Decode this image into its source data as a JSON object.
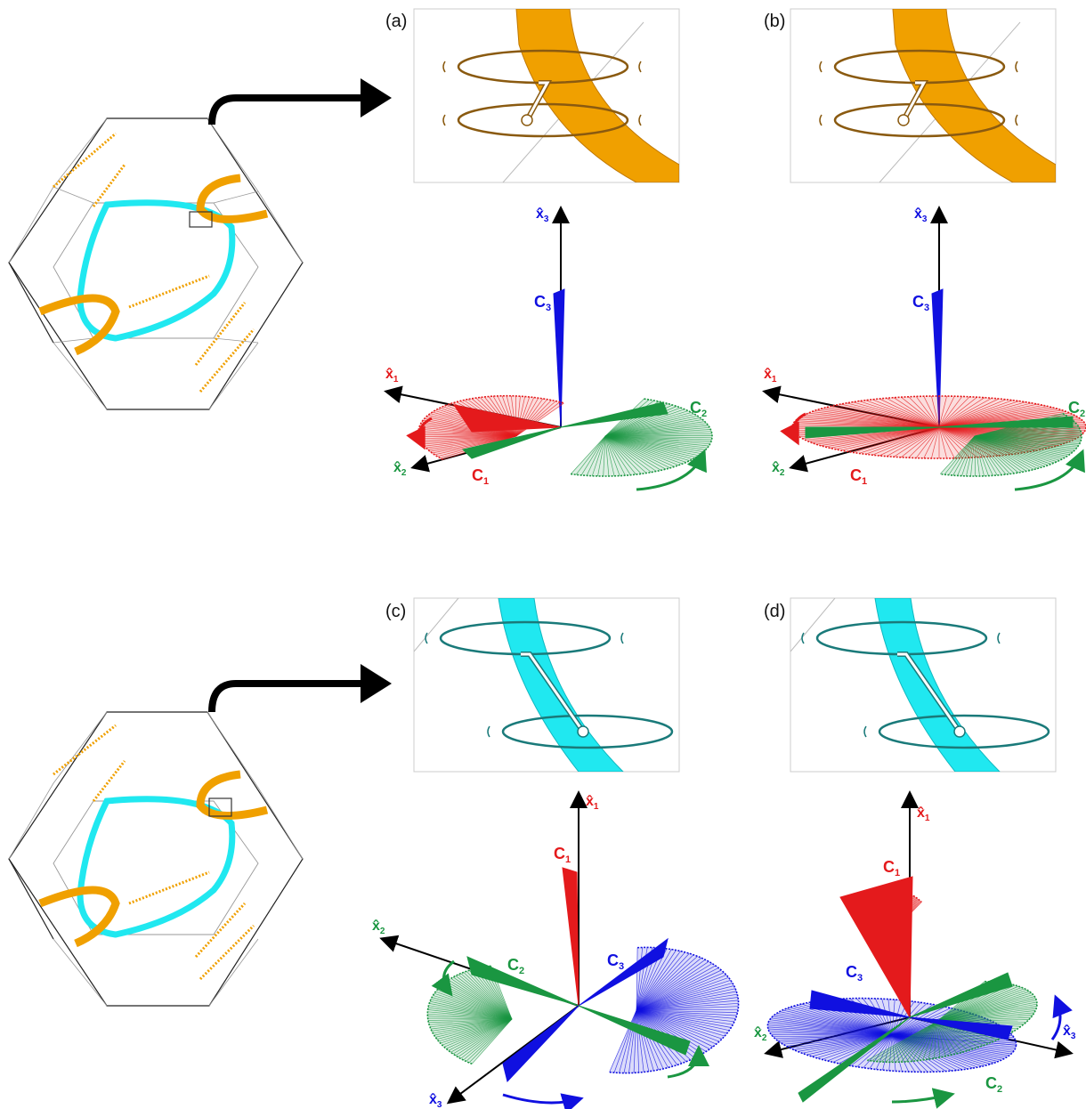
{
  "panels": [
    {
      "label": "(a)",
      "axis_top": "x̂",
      "axis_top_sub": "3",
      "axis_left": "x̂",
      "axis_left_sub": "1",
      "axis_lower": "x̂",
      "axis_lower_sub": "2",
      "cone_top": "C",
      "cone_top_sub": "3",
      "cone_left": "C",
      "cone_left_sub": "1",
      "cone_right": "C",
      "cone_right_sub": "2"
    },
    {
      "label": "(b)",
      "axis_top": "x̂",
      "axis_top_sub": "3",
      "axis_left": "x̂",
      "axis_left_sub": "1",
      "axis_lower": "x̂",
      "axis_lower_sub": "2",
      "cone_top": "C",
      "cone_top_sub": "3",
      "cone_left": "C",
      "cone_left_sub": "1",
      "cone_right": "C",
      "cone_right_sub": "2"
    },
    {
      "label": "(c)",
      "axis_top": "x̂",
      "axis_top_sub": "1",
      "axis_left": "x̂",
      "axis_left_sub": "2",
      "axis_lower": "x̂",
      "axis_lower_sub": "3",
      "cone_top": "C",
      "cone_top_sub": "1",
      "cone_left": "C",
      "cone_left_sub": "2",
      "cone_right": "C",
      "cone_right_sub": "3"
    },
    {
      "label": "(d)",
      "axis_top": "x̂",
      "axis_top_sub": "1",
      "axis_left": "x̂",
      "axis_left_sub": "2",
      "axis_lower": "x̂",
      "axis_lower_sub": "3",
      "cone_top": "C",
      "cone_top_sub": "1",
      "cone_left": "C",
      "cone_left_sub": "3",
      "cone_right": "C",
      "cone_right_sub": "2"
    }
  ],
  "colors": {
    "axis1": "#e41a1c",
    "axis2": "#1a9641",
    "axis3": "#1010e0",
    "gold": "#f0a000",
    "cyan": "#20e8f0",
    "ring_gold": "#8a5a10",
    "ring_cyan": "#1a7a7a"
  }
}
